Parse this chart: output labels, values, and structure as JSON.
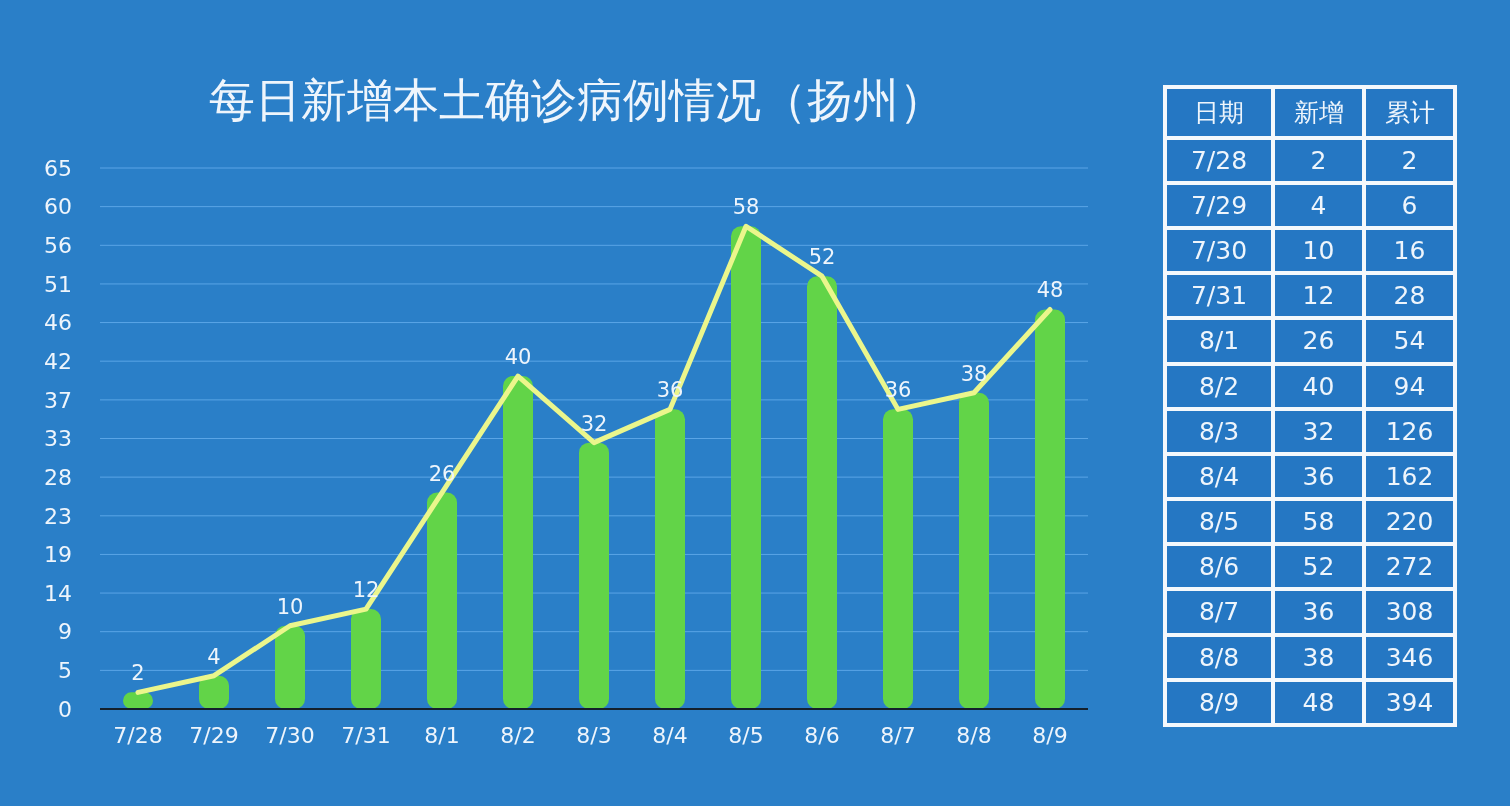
{
  "chart_data": [
    {
      "type": "bar",
      "title": "每日新增本土确诊病例情况（扬州）",
      "categories": [
        "7/28",
        "7/29",
        "7/30",
        "7/31",
        "8/1",
        "8/2",
        "8/3",
        "8/4",
        "8/5",
        "8/6",
        "8/7",
        "8/8",
        "8/9"
      ],
      "series": [
        {
          "type": "bar",
          "color": "#62d448",
          "values": [
            2,
            4,
            10,
            12,
            26,
            40,
            32,
            36,
            58,
            52,
            36,
            38,
            48
          ]
        },
        {
          "type": "line",
          "color": "#ebf68c",
          "values": [
            2,
            4,
            10,
            12,
            26,
            40,
            32,
            36,
            58,
            52,
            36,
            38,
            48
          ],
          "data_labels": true
        }
      ],
      "ylim": [
        0,
        65
      ],
      "yticks": [
        0,
        {
          "value": 4.64,
          "label": "5"
        },
        {
          "value": 9.29,
          "label": "9"
        },
        {
          "value": 13.93,
          "label": "14"
        },
        {
          "value": 18.57,
          "label": "19"
        },
        {
          "value": 23.21,
          "label": "23"
        },
        {
          "value": 27.86,
          "label": "28"
        },
        {
          "value": 32.5,
          "label": "33"
        },
        {
          "value": 37.14,
          "label": "37"
        },
        {
          "value": 41.79,
          "label": "42"
        },
        {
          "value": 46.43,
          "label": "46"
        },
        {
          "value": 51.07,
          "label": "51"
        },
        {
          "value": 55.71,
          "label": "56"
        },
        {
          "value": 60.36,
          "label": "60"
        },
        65
      ],
      "grid": "y"
    },
    {
      "type": "other",
      "xlabel": "日期",
      "data_labels": true,
      "legend": "top",
      "categories": [
        "7/28",
        "7/29",
        "7/30",
        "7/31",
        "8/1",
        "8/2",
        "8/3",
        "8/4",
        "8/5",
        "8/6",
        "8/7",
        "8/8",
        "8/9"
      ],
      "series": [
        {
          "name": "新增",
          "values": [
            2,
            4,
            10,
            12,
            26,
            40,
            32,
            36,
            58,
            52,
            36,
            38,
            48
          ]
        },
        {
          "name": "累计",
          "values": [
            2,
            6,
            16,
            28,
            54,
            94,
            126,
            162,
            220,
            272,
            308,
            346,
            394
          ]
        }
      ]
    }
  ]
}
